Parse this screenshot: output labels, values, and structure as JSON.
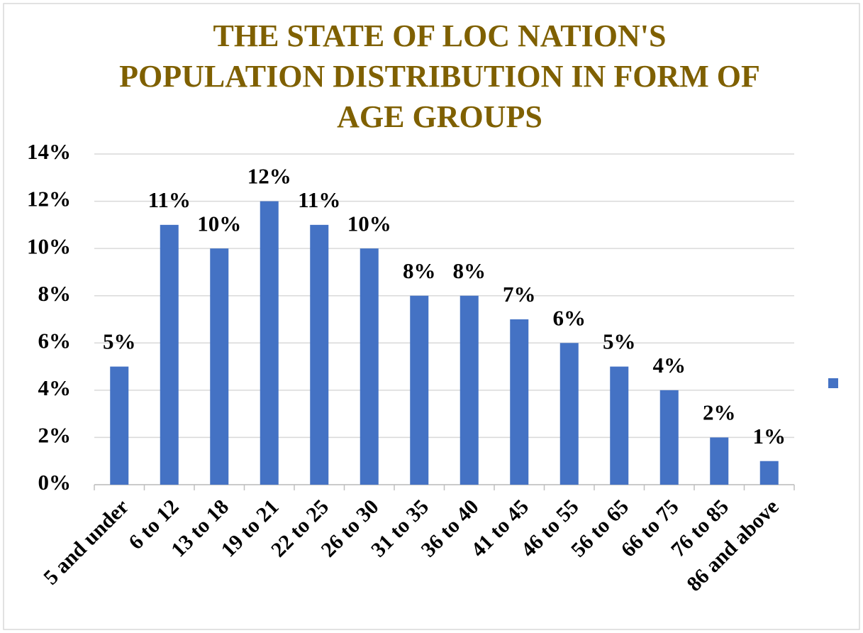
{
  "chart_data": {
    "type": "bar",
    "title": [
      "THE STATE OF LOC NATION'S",
      "POPULATION DISTRIBUTION IN FORM OF",
      "AGE GROUPS"
    ],
    "categories": [
      "5 and under",
      "6 to 12",
      "13 to 18",
      "19 to 21",
      "22 to 25",
      "26 to 30",
      "31 to 35",
      "36 to 40",
      "41 to 45",
      "46 to 55",
      "56 to 65",
      "66 to 75",
      "76 to 85",
      "86 and above"
    ],
    "values": [
      5,
      11,
      10,
      12,
      11,
      10,
      8,
      8,
      7,
      6,
      5,
      4,
      2,
      1
    ],
    "value_labels": [
      "5%",
      "11%",
      "10%",
      "12%",
      "11%",
      "10%",
      "8%",
      "8%",
      "7%",
      "6%",
      "5%",
      "4%",
      "2%",
      "1%"
    ],
    "color": "#4472c4",
    "ylim": [
      0,
      14
    ],
    "yticks": [
      {
        "value": 0,
        "label": "0%"
      },
      {
        "value": 2,
        "label": "2%"
      },
      {
        "value": 4,
        "label": "4%"
      },
      {
        "value": 6,
        "label": "6%"
      },
      {
        "value": 8,
        "label": "8%"
      },
      {
        "value": 10,
        "label": "10%"
      },
      {
        "value": 12,
        "label": "12%"
      },
      {
        "value": 14,
        "label": "14%"
      }
    ],
    "grid": true
  }
}
